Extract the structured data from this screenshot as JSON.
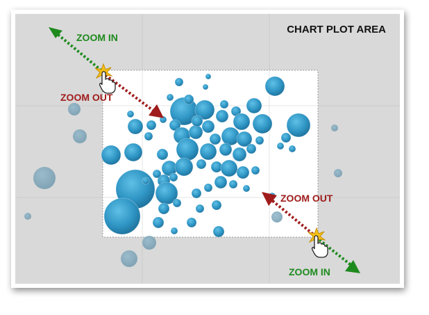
{
  "title": "CHART PLOT AREA",
  "labels": {
    "zoom_in_top": "ZOOM IN",
    "zoom_out_top": "ZOOM OUT",
    "zoom_out_bottom": "ZOOM OUT",
    "zoom_in_bottom": "ZOOM IN"
  },
  "colors": {
    "zoom_in": "#1e8a1e",
    "zoom_out": "#a01c1c",
    "bubble": "#2f95c4",
    "plot_background": "#d9d9d9",
    "zoom_selection": "#ffffff"
  },
  "icons": [
    "hand-pointer-icon",
    "click-burst-icon"
  ]
}
